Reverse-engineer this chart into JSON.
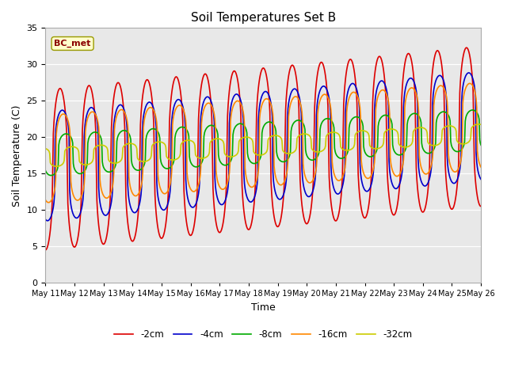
{
  "title": "Soil Temperatures Set B",
  "xlabel": "Time",
  "ylabel": "Soil Temperature (C)",
  "ylim": [
    0,
    35
  ],
  "yticks": [
    0,
    5,
    10,
    15,
    20,
    25,
    30,
    35
  ],
  "annotation_text": "BC_met",
  "legend_labels": [
    "-2cm",
    "-4cm",
    "-8cm",
    "-16cm",
    "-32cm"
  ],
  "line_colors": [
    "#dd0000",
    "#0000cc",
    "#00aa00",
    "#ff8800",
    "#cccc00"
  ],
  "figsize": [
    6.4,
    4.8
  ],
  "dpi": 100
}
